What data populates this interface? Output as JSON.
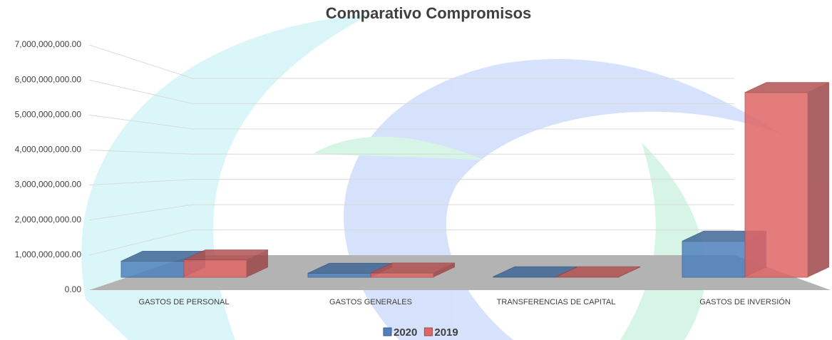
{
  "chart_data": {
    "type": "bar3d",
    "title": "Comparativo Compromisos",
    "categories": [
      "GASTOS DE PERSONAL",
      "GASTOS GENERALES",
      "TRANSFERENCIAS DE CAPITAL",
      "GASTOS DE INVERSIÓN"
    ],
    "series": [
      {
        "name": "2020",
        "color": "#4f81bd",
        "values": [
          600000000,
          150000000,
          20000000,
          1350000000
        ]
      },
      {
        "name": "2019",
        "color": "#e06666",
        "values": [
          650000000,
          160000000,
          20000000,
          6900000000
        ]
      }
    ],
    "ylim": [
      0,
      7000000000
    ],
    "yticks": [
      {
        "value": 0,
        "label": "0.00"
      },
      {
        "value": 1000000000,
        "label": "1,000,000,000.00"
      },
      {
        "value": 2000000000,
        "label": "2,000,000,000.00"
      },
      {
        "value": 3000000000,
        "label": "3,000,000,000.00"
      },
      {
        "value": 4000000000,
        "label": "4,000,000,000.00"
      },
      {
        "value": 5000000000,
        "label": "5,000,000,000.00"
      },
      {
        "value": 6000000000,
        "label": "6,000,000,000.00"
      },
      {
        "value": 7000000000,
        "label": "7,000,000,000.00"
      }
    ],
    "grid": true,
    "legend": "bottom"
  }
}
